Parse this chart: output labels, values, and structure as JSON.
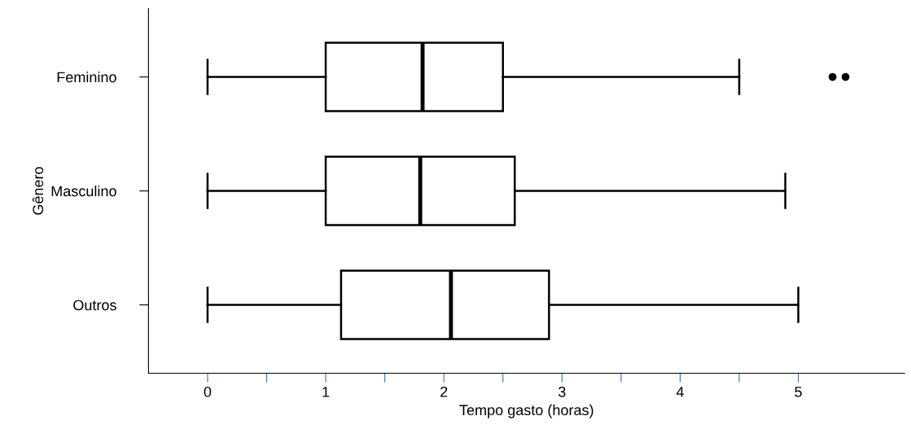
{
  "chart_data": {
    "type": "box",
    "orientation": "horizontal",
    "xlabel": "Tempo gasto (horas)",
    "ylabel": "Gênero",
    "categories": [
      "Feminino",
      "Masculino",
      "Outros"
    ],
    "boxes": [
      {
        "low": 0,
        "q1": 1.0,
        "median": 1.82,
        "q3": 2.5,
        "high": 4.5,
        "outliers": [
          5.29,
          5.4
        ]
      },
      {
        "low": 0,
        "q1": 1.0,
        "median": 1.8,
        "q3": 2.6,
        "high": 4.89
      },
      {
        "low": 0,
        "q1": 1.13,
        "median": 2.06,
        "q3": 2.89,
        "high": 5.0
      }
    ],
    "color": "#000000",
    "xlim": [
      -0.5,
      5.9
    ],
    "xticks": [
      0,
      {
        "value": 0.5,
        "label": null
      },
      1,
      {
        "value": 1.5,
        "label": null
      },
      2,
      {
        "value": 2.5,
        "label": null
      },
      3,
      {
        "value": 3.5,
        "label": null
      },
      4,
      {
        "value": 4.5,
        "label": null
      },
      5
    ],
    "grid": false
  }
}
